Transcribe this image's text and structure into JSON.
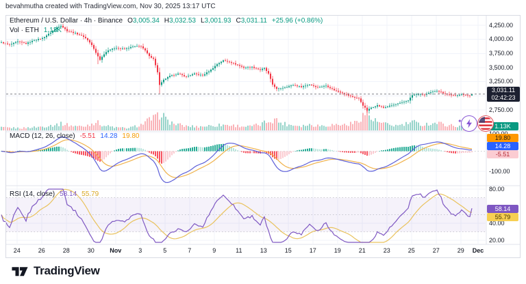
{
  "header": {
    "credit": "bevahmutha created with TradingView.com, Nov 30, 2025 13:17 UTC"
  },
  "legend": {
    "title": "Ethereum / U.S. Dollar · 4h · Binance",
    "ohlc": [
      {
        "k": "O",
        "v": "3,005.34"
      },
      {
        "k": "H",
        "v": "3,032.53"
      },
      {
        "k": "L",
        "v": "3,001.93"
      },
      {
        "k": "C",
        "v": "3,031.11"
      }
    ],
    "change": "+25.96 (+0.86%)",
    "vol_label": "Vol · ETH",
    "vol_value": "1.13K"
  },
  "price_axis": {
    "last_price": "3,031.11",
    "countdown": "02:42:23"
  },
  "macd": {
    "label": "MACD (12, 26, close)",
    "values": {
      "hist": "-5.51",
      "macd": "14.28",
      "signal": "19.80"
    }
  },
  "rsi": {
    "label": "RSI (14, close)",
    "values": {
      "rsi": "58.14",
      "ma": "55.79"
    }
  },
  "logo": {
    "text": "TradingView"
  },
  "icons": [
    {
      "name": "flash-event-icon",
      "glyph": "lightning-bolt"
    },
    {
      "name": "us-flag-event-icon",
      "glyph": "us-flag"
    }
  ],
  "colors": {
    "up": "#089981",
    "dn": "#f23645",
    "vol_up": "rgba(8,153,129,0.42)",
    "vol_dn": "rgba(242,54,69,0.38)",
    "grid": "#f0f3fa",
    "sep": "#e0e3eb",
    "text": "#131722",
    "macd_line": "#5d5fd8",
    "macd_signal": "#f0b24a",
    "hist_up": "#22ab94",
    "hist_up_f": "#b7e4db",
    "hist_dn": "#f7525f",
    "hist_dn_f": "#fbc9cf",
    "rsi_line": "#7e57c2",
    "rsi_ma": "#e9c25c",
    "rsi_band": "rgba(126,87,194,0.08)",
    "badge_price_bg": "#1c2030",
    "badge_blue": "#2962ff",
    "badge_orange": "#ff9800",
    "badge_pink": "#fbccd2",
    "badge_purple": "#7e57c2",
    "badge_yellow": "#f7cf52",
    "badge_teal": "#089981",
    "price_line": "#6a6d78"
  },
  "chart_data": [
    {
      "name": "price",
      "type": "candlestick",
      "title": "Ethereum / U.S. Dollar · 4h · Binance",
      "interval": "4h",
      "exchange": "Binance",
      "candle_count": 230,
      "y_axis": {
        "grid_values": [
          4250,
          4000,
          3750,
          3500,
          3250,
          3000,
          2750
        ],
        "labels": [
          {
            "text": "4,250.00",
            "value": 4250
          },
          {
            "text": "4,000.00",
            "value": 4000
          },
          {
            "text": "3,750.00",
            "value": 3750
          },
          {
            "text": "3,500.00",
            "value": 3500
          },
          {
            "text": "3,250.00",
            "value": 3250
          },
          {
            "text": "2,750.00",
            "value": 2750
          }
        ]
      },
      "last_candle": {
        "open": 3005.34,
        "high": 3032.53,
        "low": 3001.93,
        "close": 3031.11
      },
      "last_price": 3031.11,
      "close_anchors": [
        [
          0,
          3945
        ],
        [
          4,
          3905
        ],
        [
          8,
          3960
        ],
        [
          12,
          3925
        ],
        [
          16,
          3985
        ],
        [
          20,
          4020
        ],
        [
          24,
          4120
        ],
        [
          27,
          4210
        ],
        [
          29,
          4245
        ],
        [
          32,
          4150
        ],
        [
          36,
          4110
        ],
        [
          40,
          4050
        ],
        [
          42,
          3990
        ],
        [
          44,
          3900
        ],
        [
          46,
          3760
        ],
        [
          48,
          3640
        ],
        [
          50,
          3740
        ],
        [
          52,
          3810
        ],
        [
          56,
          3850
        ],
        [
          60,
          3830
        ],
        [
          64,
          3870
        ],
        [
          68,
          3880
        ],
        [
          70,
          3800
        ],
        [
          72,
          3700
        ],
        [
          74,
          3660
        ],
        [
          76,
          3420
        ],
        [
          77,
          3190
        ],
        [
          79,
          3280
        ],
        [
          82,
          3350
        ],
        [
          86,
          3390
        ],
        [
          90,
          3340
        ],
        [
          94,
          3390
        ],
        [
          98,
          3360
        ],
        [
          102,
          3460
        ],
        [
          105,
          3560
        ],
        [
          108,
          3625
        ],
        [
          111,
          3600
        ],
        [
          114,
          3560
        ],
        [
          118,
          3500
        ],
        [
          122,
          3510
        ],
        [
          126,
          3460
        ],
        [
          128,
          3490
        ],
        [
          130,
          3390
        ],
        [
          132,
          3200
        ],
        [
          134,
          3120
        ],
        [
          138,
          3150
        ],
        [
          142,
          3190
        ],
        [
          146,
          3160
        ],
        [
          150,
          3200
        ],
        [
          154,
          3150
        ],
        [
          158,
          3180
        ],
        [
          162,
          3100
        ],
        [
          166,
          3050
        ],
        [
          170,
          2990
        ],
        [
          174,
          2950
        ],
        [
          176,
          2830
        ],
        [
          178,
          2740
        ],
        [
          180,
          2790
        ],
        [
          183,
          2830
        ],
        [
          186,
          2790
        ],
        [
          189,
          2820
        ],
        [
          192,
          2850
        ],
        [
          195,
          2880
        ],
        [
          198,
          2920
        ],
        [
          200,
          3010
        ],
        [
          203,
          3030
        ],
        [
          206,
          3020
        ],
        [
          209,
          3060
        ],
        [
          212,
          3090
        ],
        [
          215,
          3050
        ],
        [
          218,
          3020
        ],
        [
          221,
          3000
        ],
        [
          224,
          3030
        ],
        [
          226,
          3010
        ],
        [
          228,
          3005.34
        ],
        [
          229,
          3031.11
        ]
      ],
      "wick_overrides_low": {
        "47": 3560,
        "77": 3040,
        "178": 2710
      },
      "wick_overrides_high": {
        "29": 4255
      }
    },
    {
      "name": "volume",
      "type": "bar",
      "label": "Vol · ETH",
      "last_value_text": "1.13K",
      "envelope": [
        [
          0,
          0.15
        ],
        [
          10,
          0.12
        ],
        [
          20,
          0.2
        ],
        [
          26,
          0.3
        ],
        [
          30,
          0.35
        ],
        [
          34,
          0.25
        ],
        [
          40,
          0.2
        ],
        [
          46,
          0.45
        ],
        [
          50,
          0.25
        ],
        [
          56,
          0.15
        ],
        [
          62,
          0.12
        ],
        [
          68,
          0.3
        ],
        [
          72,
          0.55
        ],
        [
          76,
          0.7
        ],
        [
          78,
          1.0
        ],
        [
          80,
          0.55
        ],
        [
          84,
          0.35
        ],
        [
          90,
          0.22
        ],
        [
          96,
          0.2
        ],
        [
          102,
          0.25
        ],
        [
          108,
          0.3
        ],
        [
          114,
          0.25
        ],
        [
          120,
          0.2
        ],
        [
          126,
          0.3
        ],
        [
          130,
          0.5
        ],
        [
          133,
          0.6
        ],
        [
          136,
          0.4
        ],
        [
          140,
          0.3
        ],
        [
          146,
          0.25
        ],
        [
          150,
          0.3
        ],
        [
          156,
          0.25
        ],
        [
          162,
          0.3
        ],
        [
          168,
          0.3
        ],
        [
          172,
          0.4
        ],
        [
          176,
          0.8
        ],
        [
          178,
          1.0
        ],
        [
          180,
          0.6
        ],
        [
          184,
          0.4
        ],
        [
          188,
          0.3
        ],
        [
          192,
          0.25
        ],
        [
          196,
          0.3
        ],
        [
          200,
          0.45
        ],
        [
          204,
          0.3
        ],
        [
          208,
          0.35
        ],
        [
          212,
          0.4
        ],
        [
          216,
          0.3
        ],
        [
          220,
          0.25
        ],
        [
          224,
          0.2
        ],
        [
          228,
          0.18
        ],
        [
          229,
          0.3
        ]
      ]
    },
    {
      "name": "macd",
      "type": "line",
      "label": "MACD (12, 26, close)",
      "params": [
        12,
        26,
        9
      ],
      "derived_from": "price.closes",
      "end_values": {
        "macd": 14.28,
        "signal": 19.8,
        "hist": -5.51
      },
      "axis_labels": [
        {
          "text": "100.00",
          "value": 100
        },
        {
          "text": "-100.00",
          "value": -100
        }
      ]
    },
    {
      "name": "rsi",
      "type": "line",
      "label": "RSI (14, close)",
      "params": [
        14
      ],
      "derived_from": "price.closes",
      "end_values": {
        "rsi": 58.14,
        "ma": 55.79
      },
      "levels": [
        70,
        50,
        30
      ],
      "band": [
        30,
        70
      ],
      "axis_labels": [
        {
          "text": "80.00",
          "value": 80
        },
        {
          "text": "40.00",
          "value": 40
        },
        {
          "text": "20.00",
          "value": 20
        }
      ]
    },
    {
      "name": "time_axis",
      "type": "axis",
      "ticks": [
        {
          "label": "24",
          "idx": 7.6
        },
        {
          "label": "26",
          "idx": 19.6
        },
        {
          "label": "28",
          "idx": 31.6
        },
        {
          "label": "30",
          "idx": 43.6
        },
        {
          "label": "Nov",
          "idx": 55.6,
          "bold": true
        },
        {
          "label": "3",
          "idx": 67.6
        },
        {
          "label": "5",
          "idx": 79.6
        },
        {
          "label": "7",
          "idx": 91.6
        },
        {
          "label": "9",
          "idx": 103.6
        },
        {
          "label": "11",
          "idx": 115.6
        },
        {
          "label": "13",
          "idx": 127.6
        },
        {
          "label": "15",
          "idx": 139.6
        },
        {
          "label": "17",
          "idx": 151.6
        },
        {
          "label": "19",
          "idx": 163.6
        },
        {
          "label": "21",
          "idx": 175.6
        },
        {
          "label": "23",
          "idx": 187.6
        },
        {
          "label": "25",
          "idx": 199.6
        },
        {
          "label": "27",
          "idx": 211.6
        },
        {
          "label": "29",
          "idx": 223.6
        },
        {
          "label": "Dec",
          "idx": 232,
          "bold": true
        }
      ]
    }
  ]
}
